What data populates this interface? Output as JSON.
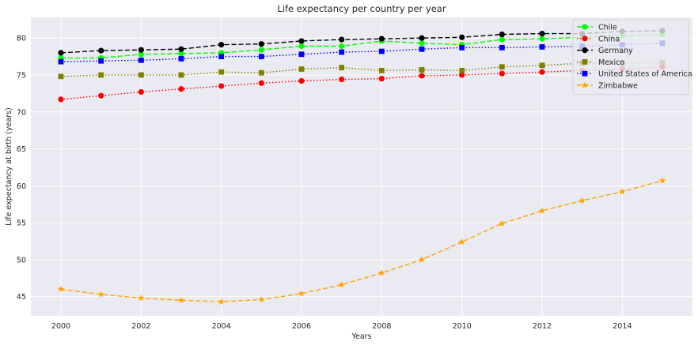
{
  "chart_data": {
    "type": "line",
    "title": "Life expectancy per country per year",
    "xlabel": "Years",
    "ylabel": "Life expectancy at birth (years)",
    "xlim": [
      1999.25,
      2015.75
    ],
    "ylim": [
      42.4,
      82.8
    ],
    "xticks": [
      2000,
      2002,
      2004,
      2006,
      2008,
      2010,
      2012,
      2014
    ],
    "yticks": [
      45,
      50,
      55,
      60,
      65,
      70,
      75,
      80
    ],
    "grid": true,
    "legend_position": "top-right",
    "x": [
      2000,
      2001,
      2002,
      2003,
      2004,
      2005,
      2006,
      2007,
      2008,
      2009,
      2010,
      2011,
      2012,
      2013,
      2014,
      2015
    ],
    "series": [
      {
        "name": "Chile",
        "color": "#00ff00",
        "dash": "6,3",
        "marker": "circle",
        "values": [
          77.3,
          77.3,
          77.8,
          77.9,
          78.0,
          78.4,
          78.9,
          78.9,
          79.6,
          79.3,
          79.1,
          79.8,
          79.9,
          80.1,
          80.3,
          80.5
        ]
      },
      {
        "name": "China",
        "color": "#ff0000",
        "dash": "1.5,2.5",
        "marker": "circle",
        "values": [
          71.7,
          72.2,
          72.7,
          73.1,
          73.5,
          73.9,
          74.2,
          74.4,
          74.5,
          74.9,
          75.0,
          75.2,
          75.4,
          75.6,
          75.8,
          76.1
        ]
      },
      {
        "name": "Germany",
        "color": "#000000",
        "dash": "6,3",
        "marker": "circle",
        "values": [
          78.0,
          78.3,
          78.4,
          78.5,
          79.1,
          79.2,
          79.6,
          79.8,
          79.9,
          80.0,
          80.1,
          80.5,
          80.6,
          80.6,
          80.9,
          81.0
        ]
      },
      {
        "name": "Mexico",
        "color": "#808000",
        "dash": "1.5,2.5",
        "marker": "square",
        "values": [
          74.8,
          75.0,
          75.0,
          75.0,
          75.4,
          75.3,
          75.8,
          76.0,
          75.6,
          75.7,
          75.6,
          76.1,
          76.3,
          76.6,
          76.6,
          76.7
        ]
      },
      {
        "name": "United States of America",
        "color": "#0000ff",
        "dash": "1.5,2.5",
        "marker": "square",
        "values": [
          76.8,
          76.9,
          77.0,
          77.2,
          77.5,
          77.5,
          77.8,
          78.1,
          78.2,
          78.5,
          78.7,
          78.7,
          78.8,
          78.9,
          79.1,
          79.3
        ]
      },
      {
        "name": "Zimbabwe",
        "color": "#ffa500",
        "dash": "6,3",
        "marker": "star",
        "values": [
          46.0,
          45.3,
          44.8,
          44.5,
          44.3,
          44.6,
          45.4,
          46.6,
          48.2,
          50.0,
          52.4,
          54.9,
          56.6,
          58.0,
          59.2,
          60.7
        ]
      }
    ]
  }
}
